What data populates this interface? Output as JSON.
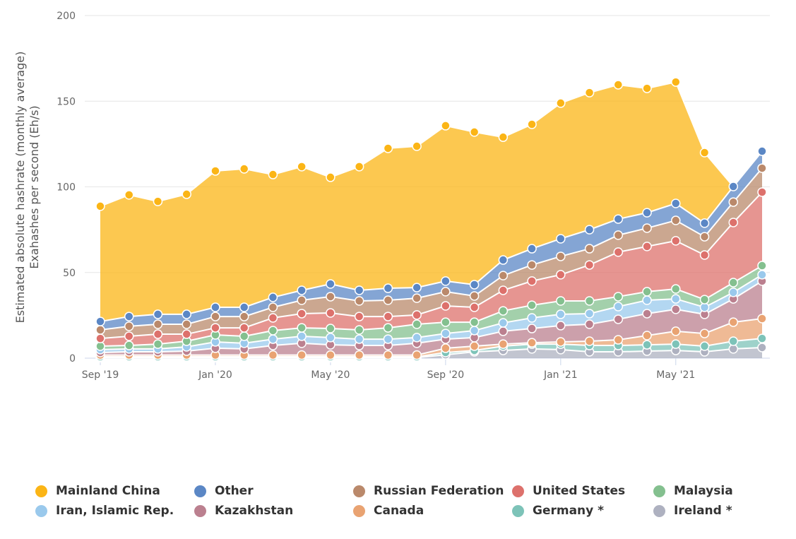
{
  "chart_data": {
    "type": "area",
    "stacked": true,
    "title": "",
    "ylabel": [
      "Estimated absolute hashrate (monthly average)",
      "Exahashes per second (Eh/s)"
    ],
    "xlabel": "",
    "ylim": [
      0,
      200
    ],
    "yticks": [
      0,
      50,
      100,
      150,
      200
    ],
    "grid": true,
    "legend_position": "bottom",
    "x": [
      "2019-09",
      "2019-10",
      "2019-11",
      "2019-12",
      "2020-01",
      "2020-02",
      "2020-03",
      "2020-04",
      "2020-05",
      "2020-06",
      "2020-07",
      "2020-08",
      "2020-09",
      "2020-10",
      "2020-11",
      "2020-12",
      "2021-01",
      "2021-02",
      "2021-03",
      "2021-04",
      "2021-05",
      "2021-06",
      "2021-07",
      "2021-08"
    ],
    "xticks": [
      {
        "label": "Sep '19",
        "index": 0
      },
      {
        "label": "Jan '20",
        "index": 4
      },
      {
        "label": "May '20",
        "index": 8
      },
      {
        "label": "Sep '20",
        "index": 12
      },
      {
        "label": "Jan '21",
        "index": 16
      },
      {
        "label": "May '21",
        "index": 20
      }
    ],
    "series": [
      {
        "name": "Ireland *",
        "color": "#aeb1c0",
        "values": [
          0.3,
          0.3,
          0.3,
          0.3,
          0.3,
          0.3,
          0.3,
          0.3,
          0.3,
          0.3,
          0.3,
          0.3,
          2,
          3.7,
          4.5,
          5.4,
          5,
          3.7,
          3.7,
          4.1,
          4.5,
          3.7,
          5.4,
          6.2
        ]
      },
      {
        "name": "Germany *",
        "color": "#7dc3b8",
        "values": [
          0.5,
          0.5,
          0.5,
          0.5,
          0.5,
          0.5,
          0.5,
          0.5,
          0.5,
          0.5,
          0.5,
          0.5,
          1.3,
          0.8,
          2.5,
          2.8,
          3.2,
          3.7,
          3.7,
          3.7,
          3.7,
          3.3,
          4.5,
          5.3
        ]
      },
      {
        "name": "Canada",
        "color": "#e9a372",
        "values": [
          1,
          1,
          1,
          1,
          1,
          1,
          1,
          1,
          1,
          1,
          1,
          1,
          2.5,
          2.5,
          1.2,
          0.8,
          1.3,
          2.5,
          3.3,
          5.4,
          7.5,
          7.4,
          11.1,
          11.6
        ]
      },
      {
        "name": "Kazakhstan",
        "color": "#bb808f",
        "values": [
          1.5,
          1.9,
          1.9,
          2.3,
          4,
          3.6,
          5.6,
          6.9,
          6,
          5.6,
          5.6,
          6.9,
          5.3,
          5,
          7.5,
          8.3,
          9.5,
          9.9,
          12,
          12.8,
          12.8,
          11.2,
          13.6,
          21.9
        ]
      },
      {
        "name": "Iran, Islamic Rep.",
        "color": "#9ac9ec",
        "values": [
          1.7,
          1.7,
          1.7,
          2.5,
          3.7,
          3.3,
          3.7,
          4.1,
          4.2,
          3.7,
          3.7,
          3.3,
          3.3,
          4.1,
          4.9,
          6.2,
          6.6,
          6.2,
          7.4,
          7.8,
          6.1,
          4.1,
          3.8,
          3.7
        ]
      },
      {
        "name": "Malaysia",
        "color": "#84c08f",
        "values": [
          2,
          2,
          2.8,
          3.3,
          4.1,
          4.1,
          5,
          4.9,
          5.3,
          5.4,
          6.6,
          7.8,
          6.6,
          4.9,
          7,
          7.4,
          7.8,
          7.4,
          5.8,
          5,
          5.8,
          4.5,
          5.7,
          5.3
        ]
      },
      {
        "name": "United States",
        "color": "#dd716c",
        "values": [
          4.5,
          5.4,
          5.8,
          4.1,
          4.1,
          4.9,
          7.4,
          8.3,
          9.1,
          7.8,
          6.6,
          5.4,
          9.5,
          8.7,
          12,
          14.1,
          15.3,
          21,
          26,
          26.4,
          28.1,
          26,
          35.1,
          42.9
        ]
      },
      {
        "name": "Russian Federation",
        "color": "#ba896b",
        "values": [
          5,
          5.8,
          5.8,
          5.8,
          6.6,
          6.6,
          6.2,
          7.8,
          9.5,
          9.1,
          9.5,
          9.8,
          8.3,
          6.6,
          8.6,
          9.4,
          10.7,
          9.5,
          9.9,
          10.7,
          11.9,
          10.7,
          11.9,
          14
        ]
      },
      {
        "name": "Other",
        "color": "#5b87c5",
        "values": [
          4.9,
          5.7,
          5.8,
          5.8,
          5.4,
          5.4,
          5.8,
          5.8,
          7.4,
          6.2,
          7,
          6.2,
          6.2,
          6.6,
          9.1,
          9.5,
          10.3,
          11.1,
          9.4,
          9,
          9.9,
          7.9,
          9.1,
          9.9
        ]
      },
      {
        "name": "Mainland China",
        "color": "#fbb516",
        "values": [
          67.3,
          71,
          65.9,
          70.1,
          79.6,
          80.8,
          71.7,
          72.2,
          62.3,
          72.2,
          81.7,
          82.5,
          90.7,
          89.1,
          71.7,
          72.6,
          79.2,
          80,
          78.4,
          72.6,
          70.9,
          41.2,
          null,
          null
        ]
      }
    ],
    "legend_order": [
      "Mainland China",
      "Other",
      "Russian Federation",
      "United States",
      "Malaysia",
      "Iran, Islamic Rep.",
      "Kazakhstan",
      "Canada",
      "Germany *",
      "Ireland *"
    ]
  }
}
